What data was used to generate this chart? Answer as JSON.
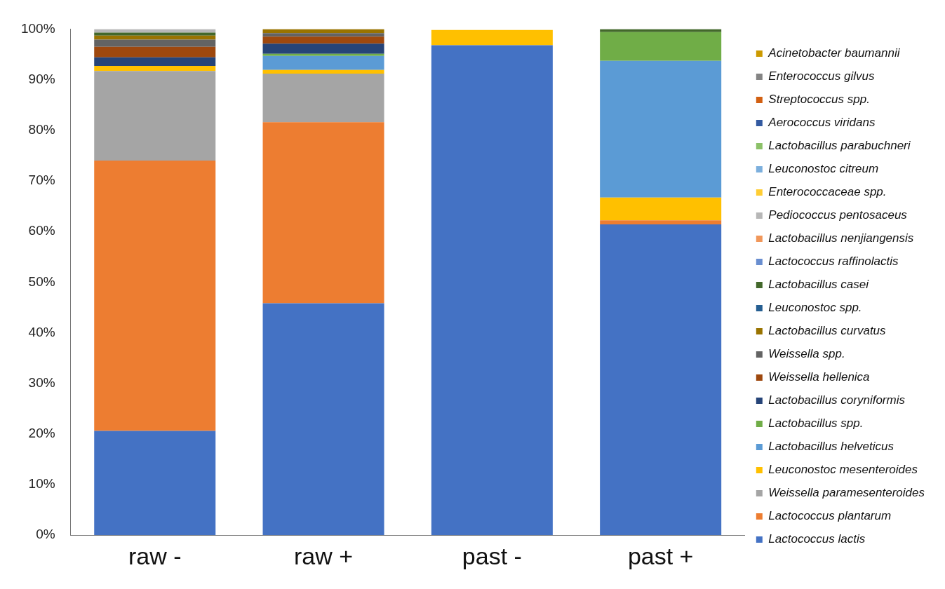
{
  "chart_data": {
    "type": "bar",
    "stacked": true,
    "categories": [
      "raw -",
      "raw +",
      "past -",
      "past +"
    ],
    "ylim": [
      0,
      100
    ],
    "yticks": [
      {
        "value": 0,
        "label": "0%"
      },
      {
        "value": 10,
        "label": "10%"
      },
      {
        "value": 20,
        "label": "20%"
      },
      {
        "value": 30,
        "label": "30%"
      },
      {
        "value": 40,
        "label": "40%"
      },
      {
        "value": 50,
        "label": "50%"
      },
      {
        "value": 60,
        "label": "60%"
      },
      {
        "value": 70,
        "label": "70%"
      },
      {
        "value": 80,
        "label": "80%"
      },
      {
        "value": 90,
        "label": "90%"
      },
      {
        "value": 100,
        "label": "100%"
      }
    ],
    "grid": false,
    "legend": "right",
    "series": [
      {
        "name": "Lactococcus lactis",
        "color": "#4472c4",
        "values": [
          20.6,
          45.8,
          96.8,
          61.4
        ]
      },
      {
        "name": "Lactococcus plantarum",
        "color": "#ed7d31",
        "values": [
          53.4,
          35.8,
          0,
          0.8
        ]
      },
      {
        "name": "Weissella paramesenteroides",
        "color": "#a5a5a5",
        "values": [
          17.7,
          9.6,
          0,
          0
        ]
      },
      {
        "name": "Leuconostoc mesenteroides",
        "color": "#ffc000",
        "values": [
          1.0,
          0.7,
          3.0,
          4.5
        ]
      },
      {
        "name": "Lactobacillus helveticus",
        "color": "#5b9bd5",
        "values": [
          0,
          2.8,
          0,
          27.0
        ]
      },
      {
        "name": "Lactobacillus spp.",
        "color": "#70ad47",
        "values": [
          0,
          0.4,
          0,
          5.7
        ]
      },
      {
        "name": "Lactobacillus coryniformis",
        "color": "#264478",
        "values": [
          1.7,
          2.0,
          0,
          0
        ]
      },
      {
        "name": "Weissella hellenica",
        "color": "#9e480e",
        "values": [
          2.1,
          1.4,
          0,
          0
        ]
      },
      {
        "name": "Weissella spp.",
        "color": "#636363",
        "values": [
          1.4,
          0.7,
          null,
          0
        ]
      },
      {
        "name": "Lactobacillus curvatus",
        "color": "#997300",
        "values": [
          0.8,
          0.8,
          0,
          0
        ]
      },
      {
        "name": "Leuconostoc spp.",
        "color": "#255e91",
        "values": [
          0,
          0,
          0,
          0
        ]
      },
      {
        "name": "Lactobacillus casei",
        "color": "#43682b",
        "values": [
          0.6,
          0,
          0,
          0.6
        ]
      },
      {
        "name": "Lactococcus raffinolactis",
        "color": "#698ed0",
        "values": [
          0,
          0,
          0,
          0
        ]
      },
      {
        "name": "Lactobacillus nenjiangensis",
        "color": "#f1975a",
        "values": [
          0,
          0,
          0,
          0
        ]
      },
      {
        "name": "Pediococcus pentosaceus",
        "color": "#b7b7b7",
        "values": [
          0.7,
          0,
          0,
          0
        ]
      },
      {
        "name": "Enterococcaceae spp.",
        "color": "#ffcd33",
        "values": [
          0,
          0,
          0,
          0
        ]
      },
      {
        "name": "Leuconostoc citreum",
        "color": "#7cafdd",
        "values": [
          0,
          0,
          0,
          0
        ]
      },
      {
        "name": "Lactobacillus parabuchneri",
        "color": "#8cc168",
        "values": [
          0,
          0,
          0,
          0
        ]
      },
      {
        "name": "Aerococcus viridans",
        "color": "#335aa1",
        "values": [
          0,
          0,
          0,
          0
        ]
      },
      {
        "name": "Streptococcus spp.",
        "color": "#d26012",
        "values": [
          0,
          0,
          0,
          0
        ]
      },
      {
        "name": "Enterococcus gilvus",
        "color": "#848484",
        "values": [
          0,
          0,
          0,
          0
        ]
      },
      {
        "name": "Acinetobacter baumannii",
        "color": "#cc9a00",
        "values": [
          0,
          0,
          0,
          0
        ]
      }
    ]
  }
}
